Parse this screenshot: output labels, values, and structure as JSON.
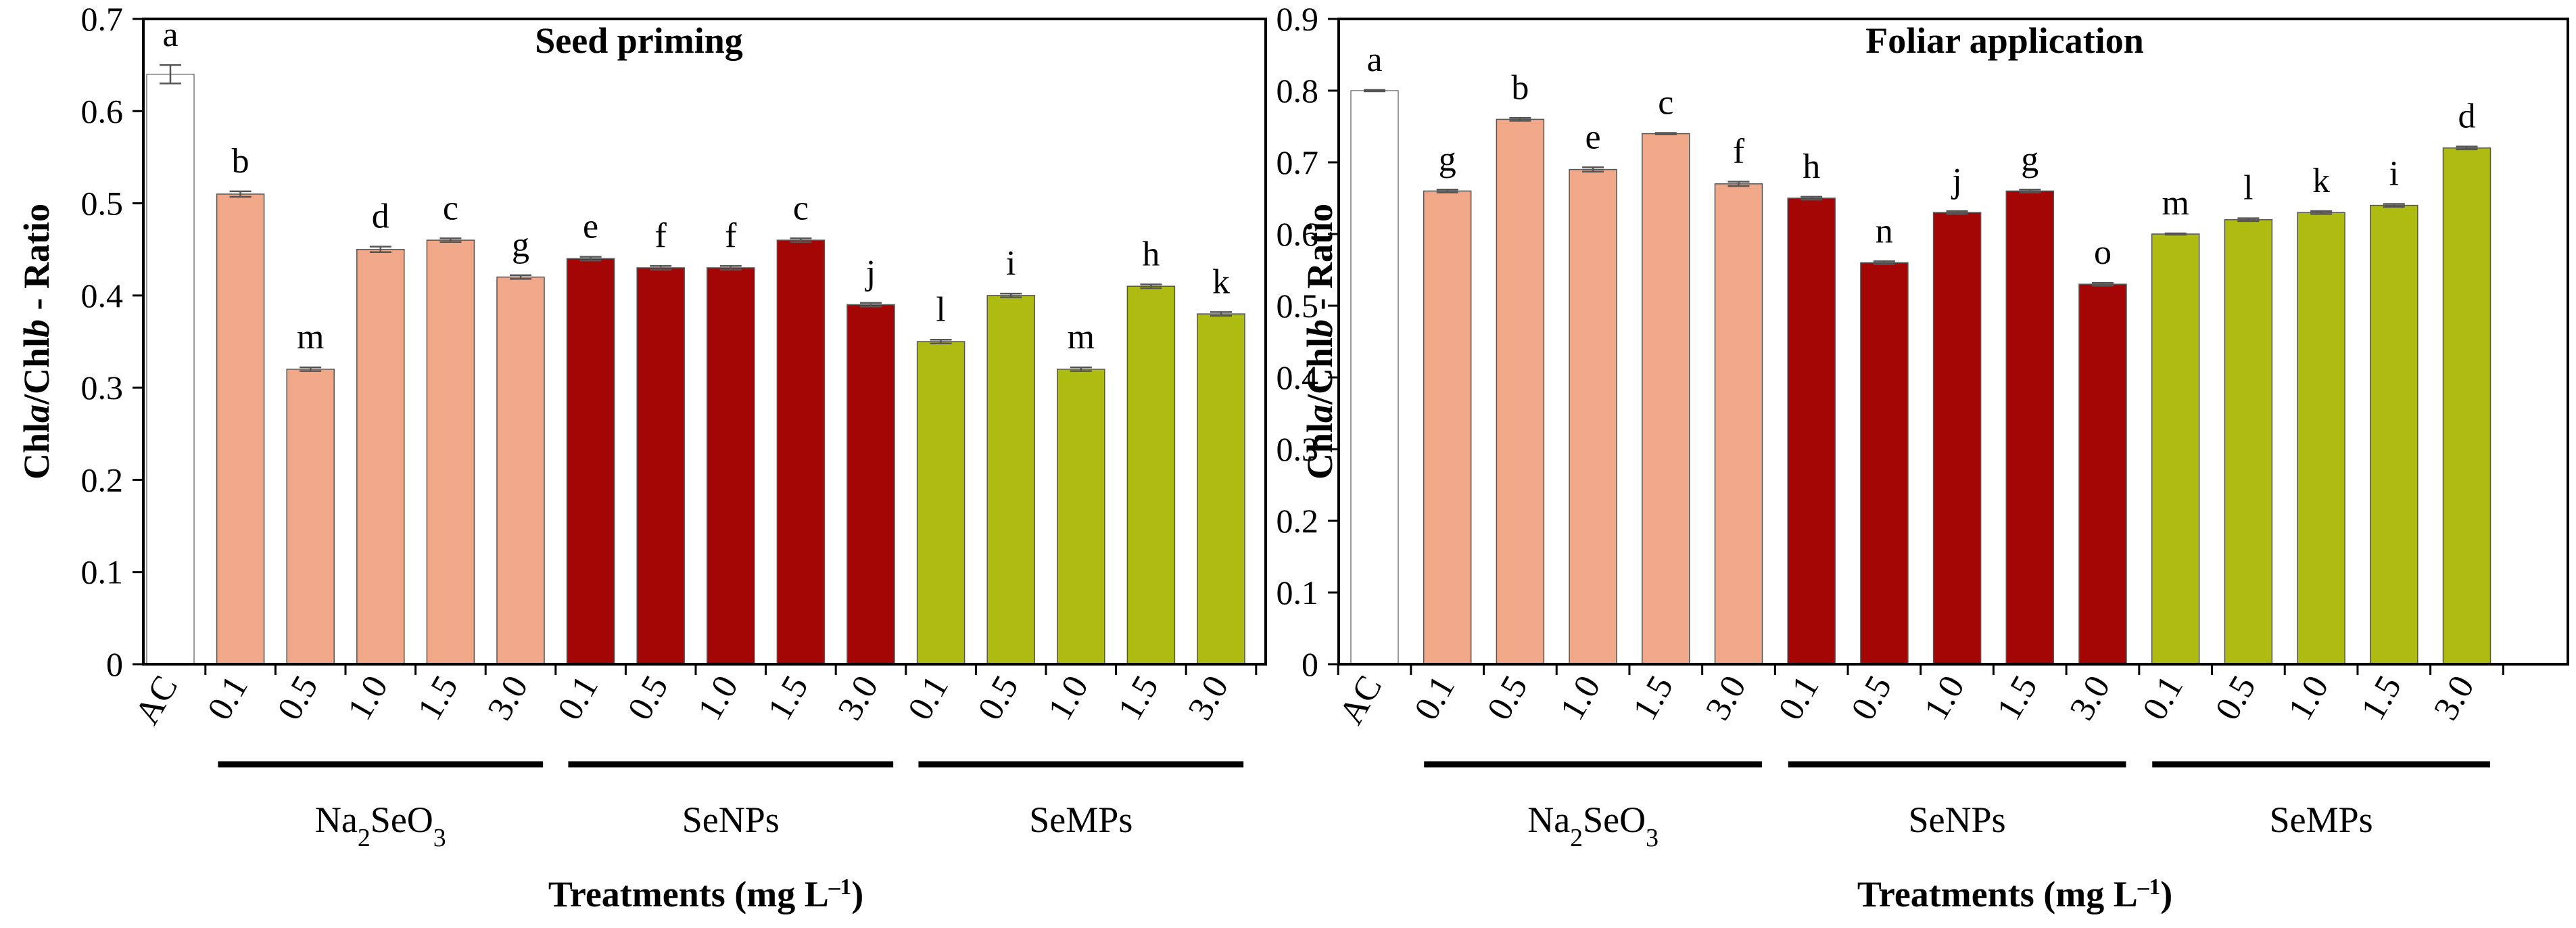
{
  "figure_id": "chl-ratio-figure",
  "chart_data": [
    {
      "type": "bar",
      "title": "Seed priming",
      "ylabel_parts": [
        {
          "text": "Chl",
          "style": "bold"
        },
        {
          "text": "a",
          "style": "bolditalic"
        },
        {
          "text": "/Chl",
          "style": "bold"
        },
        {
          "text": "b",
          "style": "bolditalic"
        },
        {
          "text": " - Ratio",
          "style": "bold"
        }
      ],
      "xlabel_parts": [
        {
          "text": "Treatments (mg L",
          "style": "bold"
        },
        {
          "text": "–1",
          "style": "sup"
        },
        {
          "text": ")",
          "style": "bold"
        }
      ],
      "ylim": [
        0,
        0.7
      ],
      "yticks": [
        "0",
        "0.1",
        "0.2",
        "0.3",
        "0.4",
        "0.5",
        "0.6",
        "0.7"
      ],
      "categories": [
        "AC",
        "0.1",
        "0.5",
        "1.0",
        "1.5",
        "3.0",
        "0.1",
        "0.5",
        "1.0",
        "1.5",
        "3.0",
        "0.1",
        "0.5",
        "1.0",
        "1.5",
        "3.0"
      ],
      "values": [
        0.64,
        0.51,
        0.32,
        0.45,
        0.46,
        0.42,
        0.44,
        0.43,
        0.43,
        0.46,
        0.39,
        0.35,
        0.4,
        0.32,
        0.41,
        0.38
      ],
      "errors": [
        0.01,
        0.003,
        0.002,
        0.003,
        0.002,
        0.002,
        0.002,
        0.002,
        0.002,
        0.002,
        0.002,
        0.002,
        0.002,
        0.002,
        0.002,
        0.002
      ],
      "letters": [
        "a",
        "b",
        "m",
        "d",
        "c",
        "g",
        "e",
        "f",
        "f",
        "c",
        "j",
        "l",
        "i",
        "m",
        "h",
        "k"
      ],
      "bar_groups": [
        0,
        1,
        1,
        1,
        1,
        1,
        2,
        2,
        2,
        2,
        2,
        3,
        3,
        3,
        3,
        3
      ],
      "groups": [
        {
          "name": "AC",
          "color": "#ffffff"
        },
        {
          "name_parts": [
            {
              "text": "Na"
            },
            {
              "text": "2",
              "style": "sub"
            },
            {
              "text": "SeO"
            },
            {
              "text": "3",
              "style": "sub"
            }
          ],
          "color": "#f0a888"
        },
        {
          "name_parts": [
            {
              "text": "SeNPs"
            }
          ],
          "color": "#a40606"
        },
        {
          "name_parts": [
            {
              "text": "SeMPs"
            }
          ],
          "color": "#aebc12"
        }
      ]
    },
    {
      "type": "bar",
      "title": "Foliar application",
      "ylabel_parts": [
        {
          "text": "Chl",
          "style": "bold"
        },
        {
          "text": "a",
          "style": "bolditalic"
        },
        {
          "text": "/Chl",
          "style": "bold"
        },
        {
          "text": "b",
          "style": "bolditalic"
        },
        {
          "text": " - Ratio",
          "style": "bold"
        }
      ],
      "xlabel_parts": [
        {
          "text": "Treatments (mg L",
          "style": "bold"
        },
        {
          "text": "–1",
          "style": "sup"
        },
        {
          "text": ")",
          "style": "bold"
        }
      ],
      "ylim": [
        0,
        0.9
      ],
      "yticks": [
        "0",
        "0.1",
        "0.2",
        "0.3",
        "0.4",
        "0.5",
        "0.6",
        "0.7",
        "0.8",
        "0.9"
      ],
      "categories": [
        "AC",
        "0.1",
        "0.5",
        "1.0",
        "1.5",
        "3.0",
        "0.1",
        "0.5",
        "1.0",
        "1.5",
        "3.0",
        "0.1",
        "0.5",
        "1.0",
        "1.5",
        "3.0"
      ],
      "values": [
        0.8,
        0.66,
        0.76,
        0.69,
        0.74,
        0.67,
        0.65,
        0.56,
        0.63,
        0.66,
        0.53,
        0.6,
        0.62,
        0.63,
        0.64,
        0.72
      ],
      "errors": [
        0.001,
        0.002,
        0.002,
        0.003,
        0.001,
        0.003,
        0.002,
        0.002,
        0.002,
        0.002,
        0.002,
        0.001,
        0.002,
        0.002,
        0.002,
        0.002
      ],
      "letters": [
        "a",
        "g",
        "b",
        "e",
        "c",
        "f",
        "h",
        "n",
        "j",
        "g",
        "o",
        "m",
        "l",
        "k",
        "i",
        "d"
      ],
      "bar_groups": [
        0,
        1,
        1,
        1,
        1,
        1,
        2,
        2,
        2,
        2,
        2,
        3,
        3,
        3,
        3,
        3
      ],
      "groups": [
        {
          "name": "AC",
          "color": "#ffffff"
        },
        {
          "name_parts": [
            {
              "text": "Na"
            },
            {
              "text": "2",
              "style": "sub"
            },
            {
              "text": "SeO"
            },
            {
              "text": "3",
              "style": "sub"
            }
          ],
          "color": "#f0a888"
        },
        {
          "name_parts": [
            {
              "text": "SeNPs"
            }
          ],
          "color": "#a40606"
        },
        {
          "name_parts": [
            {
              "text": "SeMPs"
            }
          ],
          "color": "#aebc12"
        }
      ]
    }
  ]
}
